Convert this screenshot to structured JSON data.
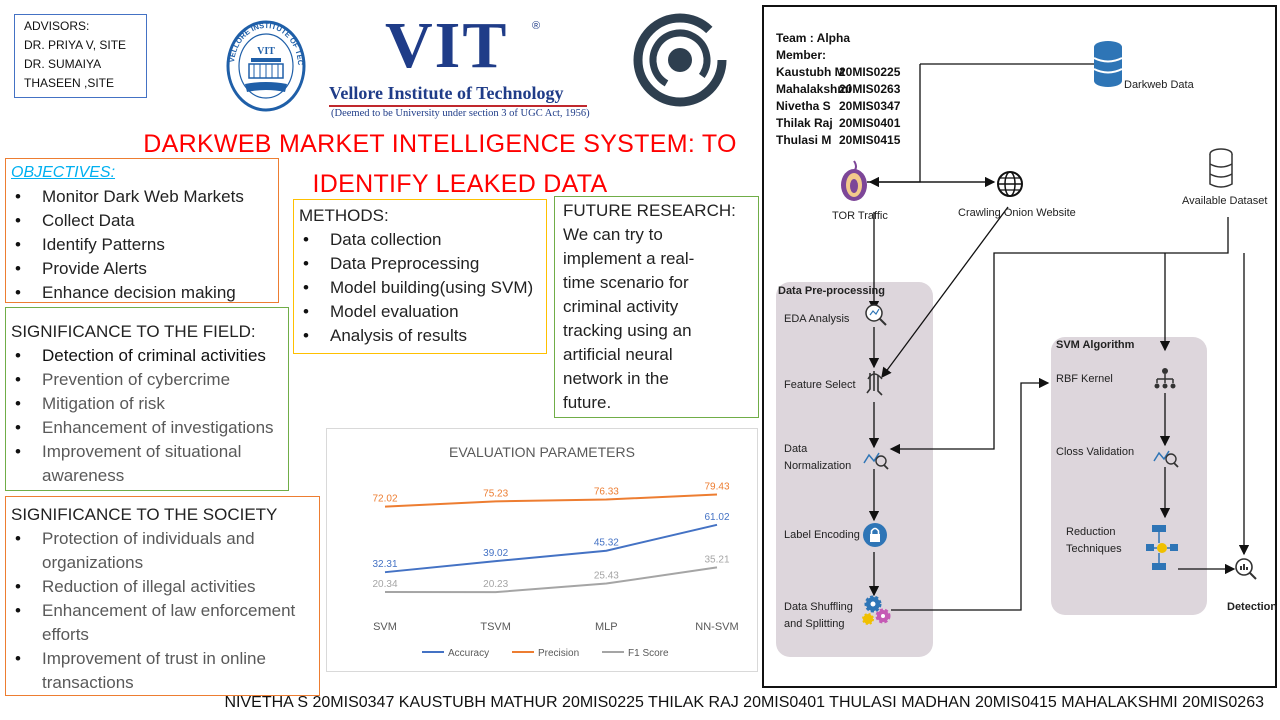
{
  "advisors": {
    "lines": [
      "ADVISORS:",
      "DR. PRIYA V, SITE",
      "DR. SUMAIYA",
      "THASEEN ,SITE"
    ]
  },
  "logos": {
    "vit_seal_text": "VELLORE INSTITUTE OF TECHNOLOGY",
    "vit_name": "VIT",
    "vit_full": "Vellore Institute of Technology",
    "vit_sub": "(Deemed to be University under section 3 of UGC Act, 1956)"
  },
  "title": {
    "line1": "DARKWEB MARKET INTELLIGENCE SYSTEM: TO",
    "line2": "IDENTIFY LEAKED DATA",
    "color": "#ff0000"
  },
  "objectives": {
    "heading": "OBJECTIVES:",
    "items": [
      "Monitor Dark Web Markets",
      "Collect Data",
      "Identify Patterns",
      "Provide Alerts",
      "Enhance decision making"
    ]
  },
  "significance_field": {
    "heading": "SIGNIFICANCE TO THE FIELD:",
    "items": [
      "Detection of criminal activities",
      "Prevention of cybercrime",
      "Mitigation of risk",
      "Enhancement of investigations",
      "Improvement of situational awareness"
    ]
  },
  "significance_society": {
    "heading": "SIGNIFICANCE TO THE SOCIETY",
    "items": [
      "Protection of individuals and organizations",
      "Reduction of illegal activities",
      "Enhancement of law enforcement efforts",
      "Improvement of trust in online transactions"
    ]
  },
  "methods": {
    "heading": "METHODS:",
    "items": [
      "Data collection",
      "Data Preprocessing",
      "Model building(using SVM)",
      "Model evaluation",
      "Analysis of results"
    ]
  },
  "future_research": {
    "heading": "FUTURE RESEARCH:",
    "body": "We can try to implement a real-time scenario for criminal activity tracking using an artificial neural network in the future."
  },
  "chart_data": {
    "type": "line",
    "title": "EVALUATION PARAMETERS",
    "categories": [
      "SVM",
      "TSVM",
      "MLP",
      "NN-SVM"
    ],
    "series": [
      {
        "name": "Accuracy",
        "values": [
          32.31,
          39.02,
          45.32,
          61.02
        ],
        "color": "#4472c4"
      },
      {
        "name": "Precision",
        "values": [
          72.02,
          75.23,
          76.33,
          79.43
        ],
        "color": "#ed7d31"
      },
      {
        "name": "F1 Score",
        "values": [
          20.34,
          20.23,
          25.43,
          35.21
        ],
        "color": "#a5a5a5"
      }
    ],
    "ylim": [
      10,
      90
    ],
    "grid": false,
    "legend": "bottom"
  },
  "team": {
    "heading": "Team : Alpha",
    "member_label": "Member:",
    "members": [
      {
        "name": "Kaustubh M",
        "id": "20MIS0225"
      },
      {
        "name": "Mahalakshmi",
        "id": "20MIS0263"
      },
      {
        "name": "Nivetha S",
        "id": "20MIS0347"
      },
      {
        "name": "Thilak Raj",
        "id": "20MIS0401"
      },
      {
        "name": "Thulasi M",
        "id": "20MIS0415"
      }
    ]
  },
  "diagram": {
    "darkweb_data": "Darkweb Data",
    "tor_traffic": "TOR Traffic",
    "crawling": "Crawling Onion Website",
    "available_dataset": "Available Dataset",
    "preprocessing_title": "Data Pre-processing",
    "eda": "EDA Analysis",
    "feature_select": "Feature Select",
    "normalization_1": "Data",
    "normalization_2": "Normalization",
    "label_encoding": "Label Encoding",
    "shuffling_1": "Data Shuffling",
    "shuffling_2": "and Splitting",
    "svm_title": "SVM Algorithm",
    "rbf": "RBF Kernel",
    "closs": "Closs Validation",
    "reduction_1": "Reduction",
    "reduction_2": "Techniques",
    "detection": "Detection"
  },
  "footer": {
    "text": "NIVETHA S 20MIS0347 KAUSTUBH MATHUR 20MIS0225 THILAK RAJ 20MIS0401 THULASI MADHAN 20MIS0415 MAHALAKSHMI 20MIS0263"
  }
}
